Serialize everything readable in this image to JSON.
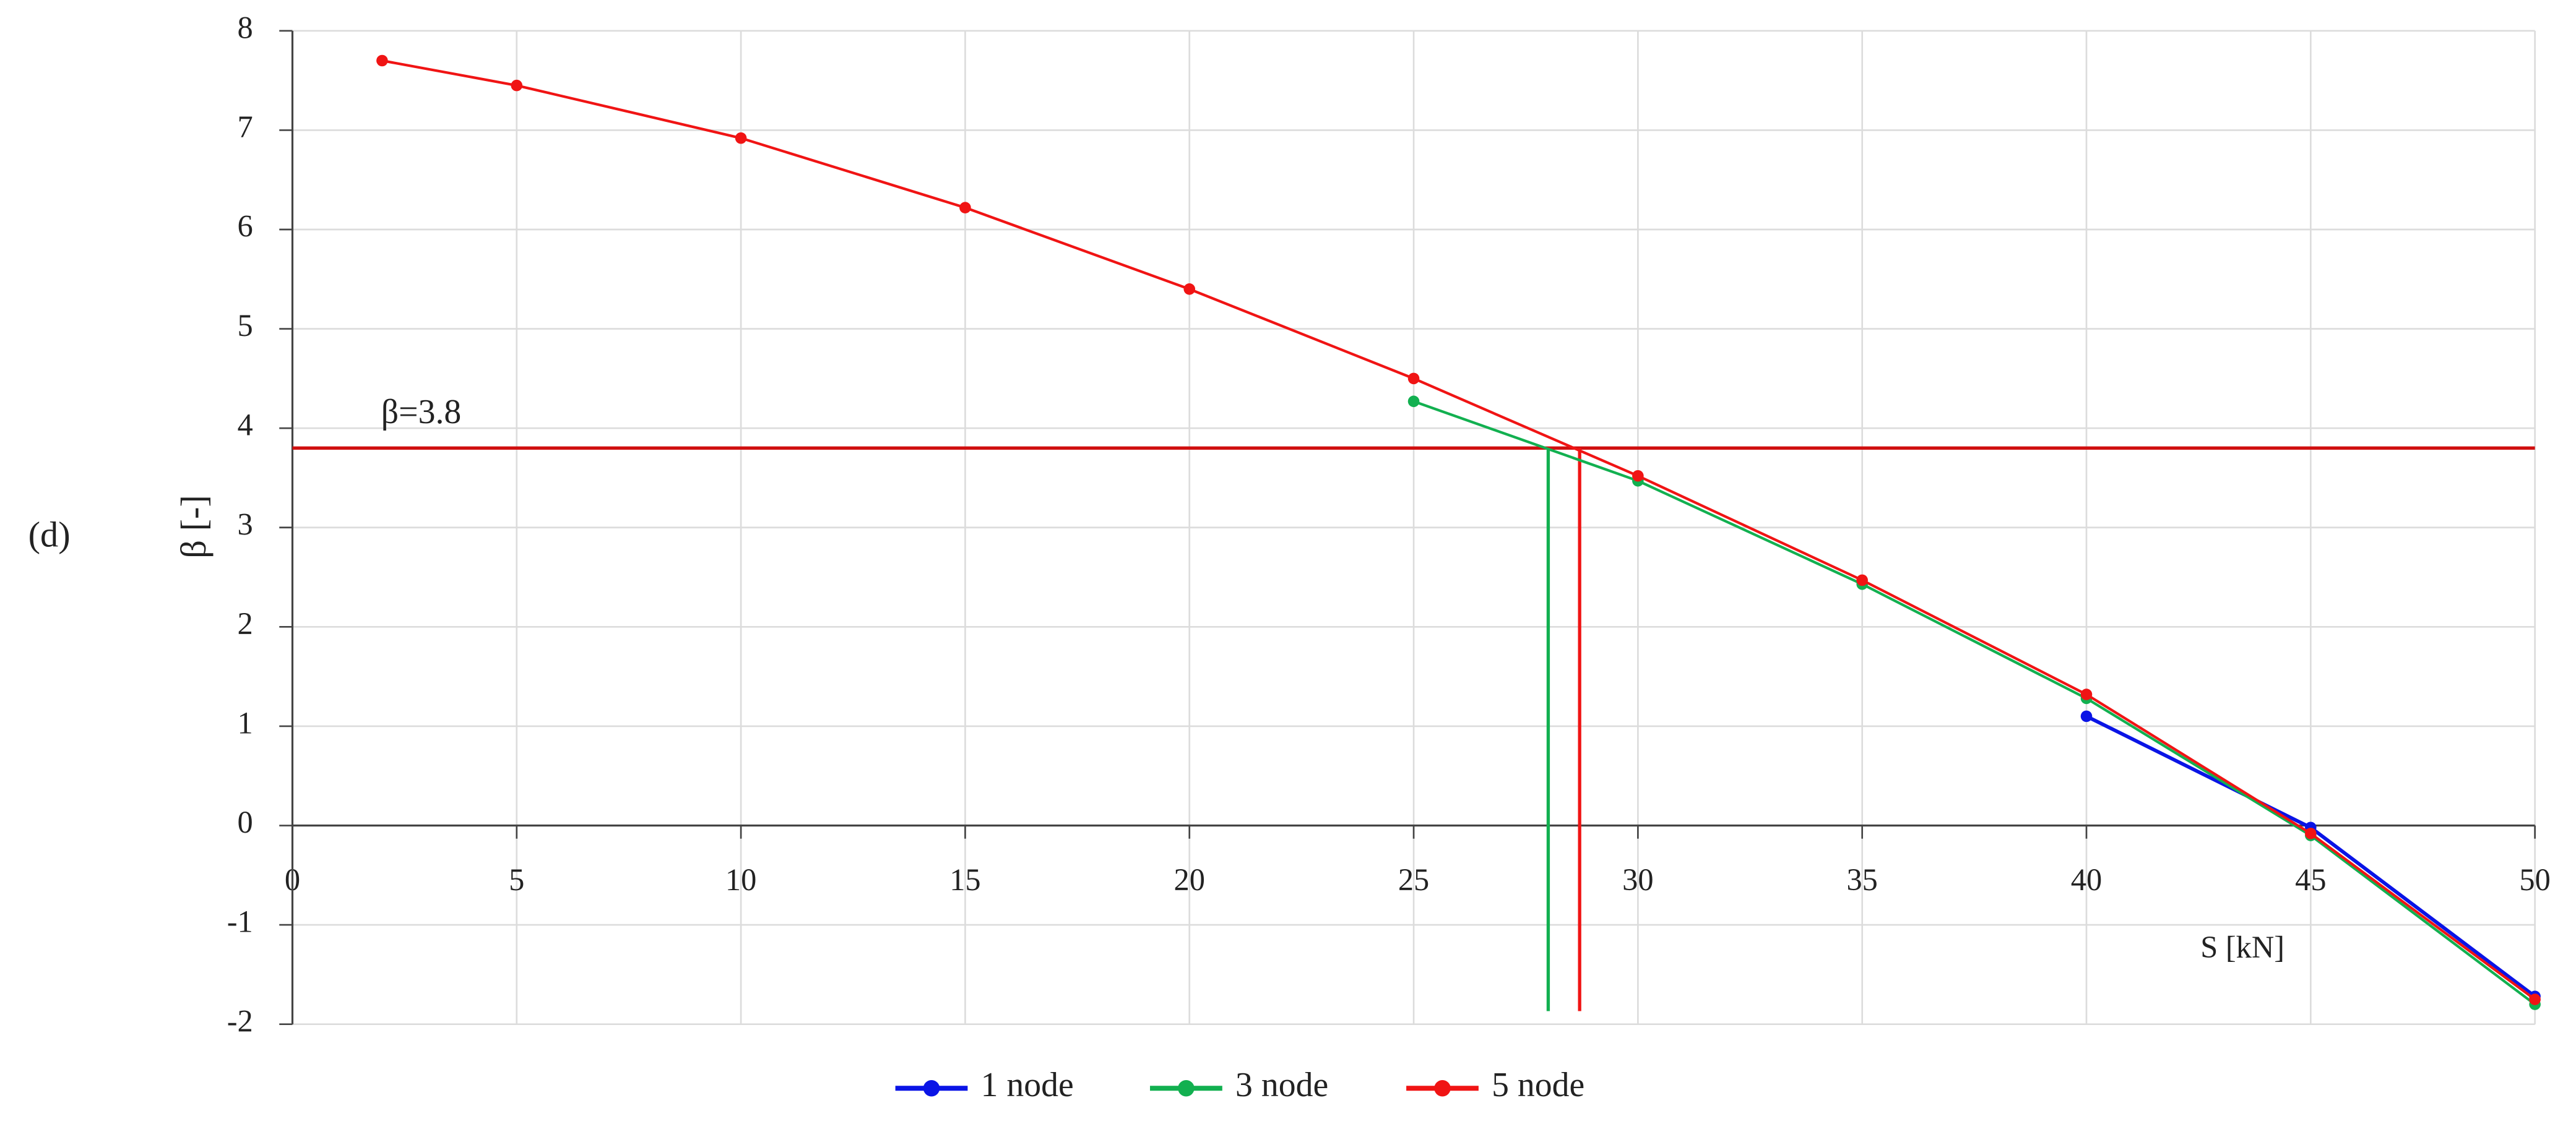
{
  "chart_data": {
    "type": "line",
    "panel_label": "(d)",
    "xlabel": "S [kN]",
    "ylabel": "β [-]",
    "xlim": [
      0,
      50
    ],
    "ylim": [
      -2,
      8
    ],
    "xticks": [
      0,
      5,
      10,
      15,
      20,
      25,
      30,
      35,
      40,
      45,
      50
    ],
    "yticks": [
      -2,
      -1,
      0,
      1,
      2,
      3,
      4,
      5,
      6,
      7,
      8
    ],
    "grid": true,
    "legend": "bottom",
    "series": [
      {
        "name": "1 node",
        "color": "#0a14e6",
        "x": [
          40,
          45,
          50
        ],
        "values": [
          1.1,
          -0.02,
          -1.72
        ]
      },
      {
        "name": "3 node",
        "color": "#12b050",
        "x": [
          25,
          30,
          35,
          40,
          45,
          50
        ],
        "values": [
          4.27,
          3.47,
          2.43,
          1.28,
          -0.1,
          -1.8
        ]
      },
      {
        "name": "5 node",
        "color": "#f01414",
        "x": [
          2,
          5,
          10,
          15,
          20,
          25,
          30,
          35,
          40,
          45,
          50
        ],
        "values": [
          7.7,
          7.45,
          6.92,
          6.22,
          5.4,
          4.5,
          3.52,
          2.47,
          1.32,
          -0.08,
          -1.75
        ]
      }
    ],
    "hlines": [
      {
        "value": 3.8,
        "color": "#d01010",
        "label": "β=3.8"
      }
    ],
    "vlines": [
      {
        "value": 28,
        "color": "#12b050"
      },
      {
        "value": 28.7,
        "color": "#f01414"
      }
    ]
  }
}
